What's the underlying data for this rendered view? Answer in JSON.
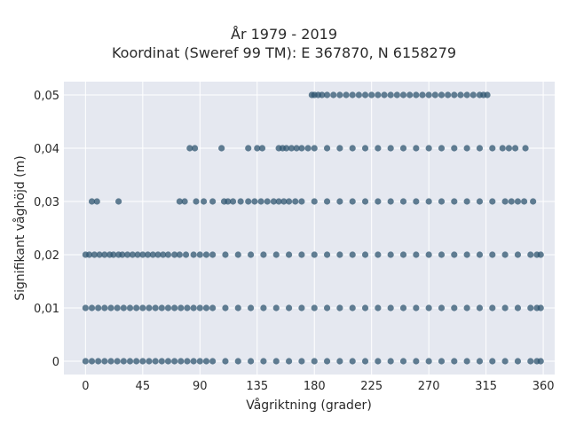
{
  "chart_data": {
    "type": "scatter",
    "title": "År 1979 - 2019",
    "subtitle": "Koordinat (Sweref 99 TM): E 367870, N 6158279",
    "xlabel": "Vågriktning (grader)",
    "ylabel": "Signifikant våghöjd (m)",
    "xlim": [
      -17,
      369
    ],
    "ylim": [
      -0.0025,
      0.0525
    ],
    "xticks": [
      0,
      45,
      90,
      135,
      180,
      225,
      270,
      315,
      360
    ],
    "xtick_labels": [
      "0",
      "45",
      "90",
      "135",
      "180",
      "225",
      "270",
      "315",
      "360"
    ],
    "yticks": [
      0,
      0.01,
      0.02,
      0.03,
      0.04,
      0.05
    ],
    "ytick_labels": [
      "0",
      "0,01",
      "0,02",
      "0,03",
      "0,04",
      "0,05"
    ],
    "grid": true,
    "marker_color": "#2f5570",
    "background_color": "#e5e8f0",
    "series": [
      {
        "y": 0.05,
        "x": [
          178,
          180,
          183,
          186,
          190,
          195,
          200,
          205,
          210,
          215,
          220,
          225,
          230,
          235,
          240,
          245,
          250,
          255,
          260,
          265,
          270,
          275,
          280,
          285,
          290,
          295,
          300,
          305,
          310,
          313,
          316
        ]
      },
      {
        "y": 0.04,
        "x": [
          82,
          86,
          107,
          128,
          135,
          139,
          152,
          155,
          158,
          162,
          166,
          170,
          175,
          180,
          190,
          200,
          210,
          220,
          230,
          240,
          250,
          260,
          270,
          280,
          290,
          300,
          310,
          320,
          328,
          333,
          338,
          346
        ]
      },
      {
        "y": 0.03,
        "x": [
          5,
          9,
          26,
          74,
          78,
          87,
          93,
          100,
          109,
          112,
          116,
          122,
          128,
          133,
          138,
          143,
          148,
          152,
          156,
          160,
          165,
          170,
          180,
          190,
          200,
          210,
          220,
          230,
          240,
          250,
          260,
          270,
          280,
          290,
          300,
          310,
          320,
          330,
          335,
          340,
          345,
          352
        ]
      },
      {
        "y": 0.02,
        "x": [
          0,
          3,
          7,
          11,
          15,
          19,
          22,
          26,
          29,
          33,
          37,
          41,
          45,
          49,
          53,
          57,
          61,
          65,
          70,
          74,
          79,
          85,
          90,
          95,
          100,
          110,
          120,
          130,
          140,
          150,
          160,
          170,
          180,
          190,
          200,
          210,
          220,
          230,
          240,
          250,
          260,
          270,
          280,
          290,
          300,
          310,
          320,
          330,
          340,
          350,
          355,
          358
        ]
      },
      {
        "y": 0.01,
        "x": [
          0,
          5,
          10,
          15,
          20,
          25,
          30,
          35,
          40,
          45,
          50,
          55,
          60,
          65,
          70,
          75,
          80,
          85,
          90,
          95,
          100,
          110,
          120,
          130,
          140,
          150,
          160,
          170,
          180,
          190,
          200,
          210,
          220,
          230,
          240,
          250,
          260,
          270,
          280,
          290,
          300,
          310,
          320,
          330,
          340,
          350,
          355,
          358
        ]
      },
      {
        "y": 0,
        "x": [
          0,
          5,
          10,
          15,
          20,
          25,
          30,
          35,
          40,
          45,
          50,
          55,
          60,
          65,
          70,
          75,
          80,
          85,
          90,
          95,
          100,
          110,
          120,
          130,
          140,
          150,
          160,
          170,
          180,
          190,
          200,
          210,
          220,
          230,
          240,
          250,
          260,
          270,
          280,
          290,
          300,
          310,
          320,
          330,
          340,
          350,
          355,
          358
        ]
      }
    ]
  }
}
